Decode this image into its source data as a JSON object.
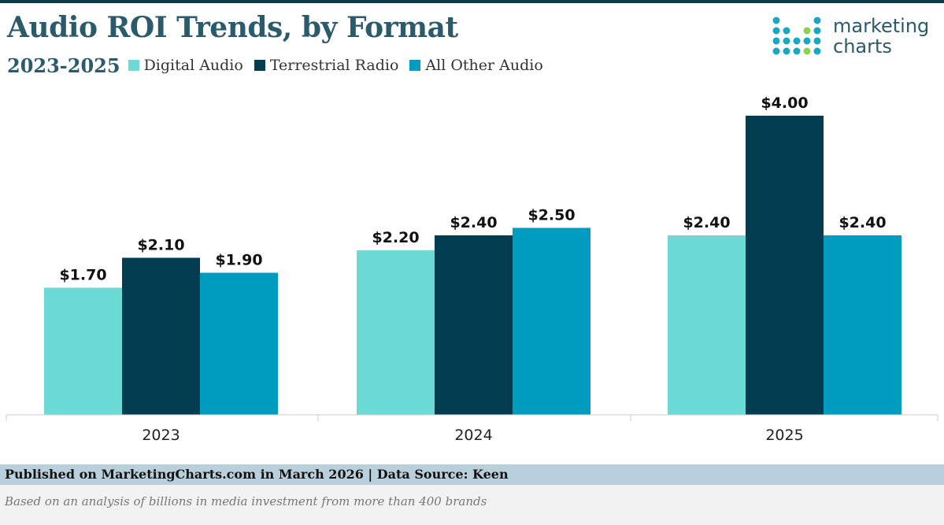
{
  "header": {
    "title": "Audio ROI Trends, by Format",
    "subtitle": "2023-2025"
  },
  "logo": {
    "line1": "marketing",
    "line2": "charts"
  },
  "colors": {
    "digital": "#6cdad5",
    "terrestrial": "#013c50",
    "other": "#009cc0",
    "title": "#2b5a6b",
    "logo_dot": "#1aa7c2",
    "logo_accent": "#8fd14f"
  },
  "chart_data": {
    "type": "bar",
    "title": "Audio ROI Trends, by Format",
    "subtitle": "2023-2025",
    "categories": [
      "2023",
      "2024",
      "2025"
    ],
    "series": [
      {
        "name": "Digital Audio",
        "values": [
          1.7,
          2.2,
          2.4
        ],
        "labels": [
          "$1.70",
          "$2.20",
          "$2.40"
        ]
      },
      {
        "name": "Terrestrial Radio",
        "values": [
          2.1,
          2.4,
          4.0
        ],
        "labels": [
          "$2.10",
          "$2.40",
          "$4.00"
        ]
      },
      {
        "name": "All Other Audio",
        "values": [
          1.9,
          2.5,
          2.4
        ],
        "labels": [
          "$1.90",
          "$2.50",
          "$2.40"
        ]
      }
    ],
    "ylim": [
      0,
      4.0
    ],
    "xlabel": "",
    "ylabel": "",
    "grid": false,
    "legend": "top-left"
  },
  "footer": {
    "published": "Published on MarketingCharts.com in March 2026 | Data Source: Keen",
    "note": "Based on an analysis of billions in media investment from more than 400 brands"
  }
}
